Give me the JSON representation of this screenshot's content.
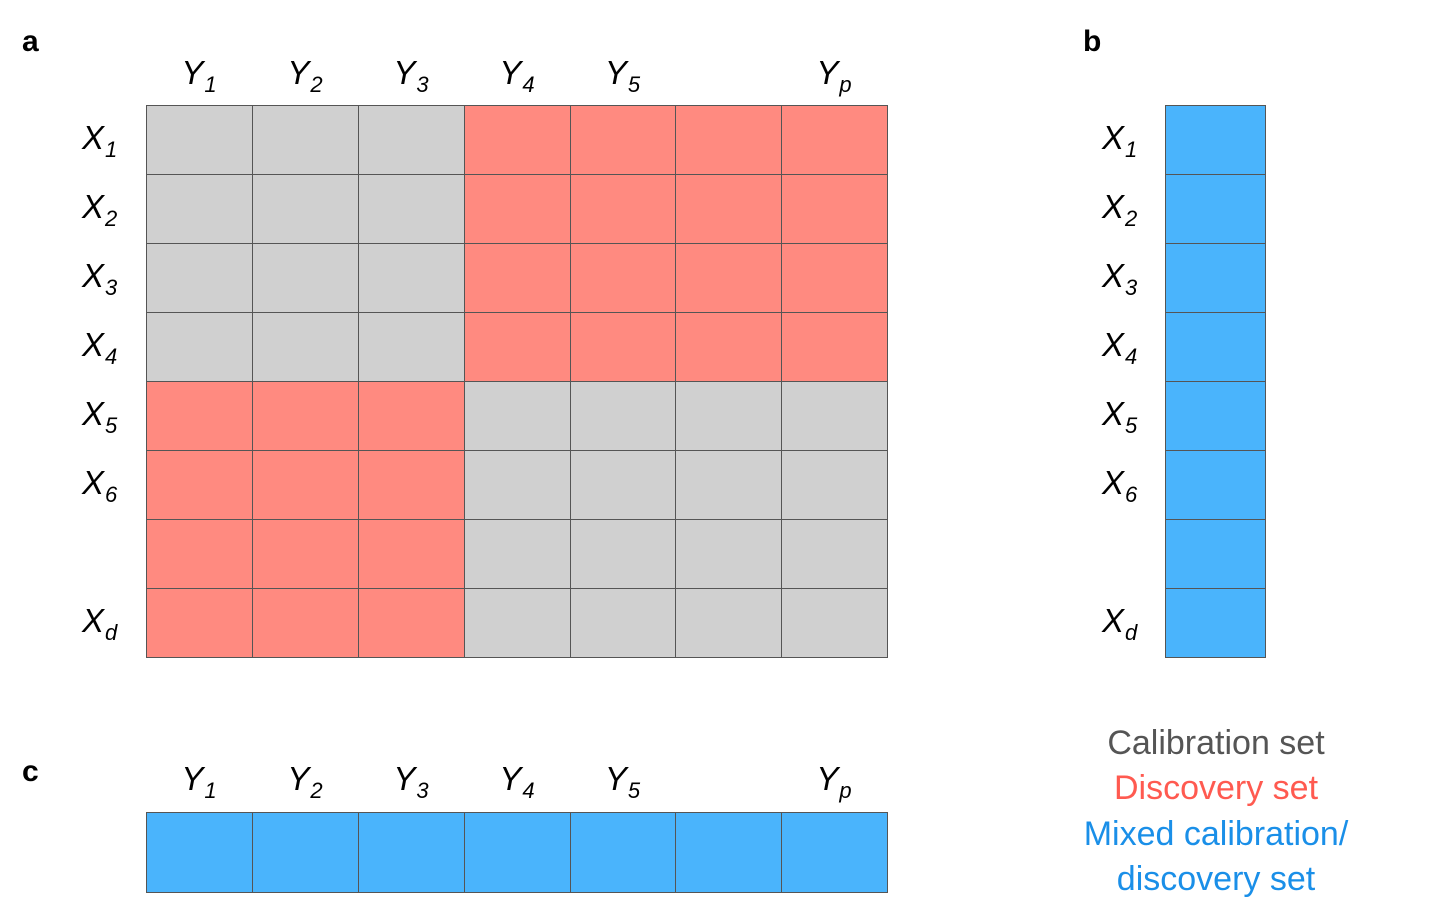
{
  "panels": {
    "a": "a",
    "b": "b",
    "c": "c"
  },
  "colors": {
    "calibration": "#d0d0d0",
    "discovery": "#ff8a80",
    "mixed": "#4ab4fc",
    "calibration_text": "#555555",
    "discovery_text": "#ff5a50",
    "mixed_text": "#1a8fe8"
  },
  "col_labels": [
    {
      "base": "Y",
      "sub": "1"
    },
    {
      "base": "Y",
      "sub": "2"
    },
    {
      "base": "Y",
      "sub": "3"
    },
    {
      "base": "Y",
      "sub": "4"
    },
    {
      "base": "Y",
      "sub": "5"
    },
    {
      "base": "",
      "sub": ""
    },
    {
      "base": "Y",
      "sub": "p"
    }
  ],
  "row_labels": [
    {
      "base": "X",
      "sub": "1"
    },
    {
      "base": "X",
      "sub": "2"
    },
    {
      "base": "X",
      "sub": "3"
    },
    {
      "base": "X",
      "sub": "4"
    },
    {
      "base": "X",
      "sub": "5"
    },
    {
      "base": "X",
      "sub": "6"
    },
    {
      "base": "",
      "sub": ""
    },
    {
      "base": "X",
      "sub": "d"
    }
  ],
  "matrix_a": [
    [
      "calibration",
      "calibration",
      "calibration",
      "discovery",
      "discovery",
      "discovery",
      "discovery"
    ],
    [
      "calibration",
      "calibration",
      "calibration",
      "discovery",
      "discovery",
      "discovery",
      "discovery"
    ],
    [
      "calibration",
      "calibration",
      "calibration",
      "discovery",
      "discovery",
      "discovery",
      "discovery"
    ],
    [
      "calibration",
      "calibration",
      "calibration",
      "discovery",
      "discovery",
      "discovery",
      "discovery"
    ],
    [
      "discovery",
      "discovery",
      "discovery",
      "calibration",
      "calibration",
      "calibration",
      "calibration"
    ],
    [
      "discovery",
      "discovery",
      "discovery",
      "calibration",
      "calibration",
      "calibration",
      "calibration"
    ],
    [
      "discovery",
      "discovery",
      "discovery",
      "calibration",
      "calibration",
      "calibration",
      "calibration"
    ],
    [
      "discovery",
      "discovery",
      "discovery",
      "calibration",
      "calibration",
      "calibration",
      "calibration"
    ]
  ],
  "column_b": [
    "mixed",
    "mixed",
    "mixed",
    "mixed",
    "mixed",
    "mixed",
    "mixed",
    "mixed"
  ],
  "row_c": [
    "mixed",
    "mixed",
    "mixed",
    "mixed",
    "mixed",
    "mixed",
    "mixed"
  ],
  "legend": {
    "calibration": "Calibration set",
    "discovery": "Discovery set",
    "mixed_line1": "Mixed calibration/",
    "mixed_line2": "discovery set"
  }
}
